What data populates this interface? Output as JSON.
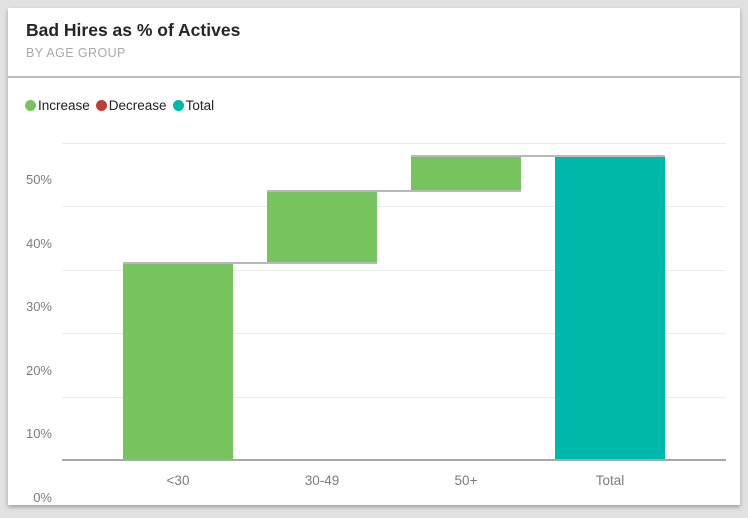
{
  "header": {
    "title": "Bad Hires as % of Actives",
    "subtitle": "BY AGE GROUP"
  },
  "legend": {
    "items": [
      {
        "label": "Increase",
        "color": "#77C35D"
      },
      {
        "label": "Decrease",
        "color": "#BE3C38"
      },
      {
        "label": "Total",
        "color": "#00B8AA"
      }
    ]
  },
  "chart_data": {
    "type": "waterfall",
    "title": "Bad Hires as % of Actives",
    "subtitle": "BY AGE GROUP",
    "categories": [
      "<30",
      "30-49",
      "50+",
      "Total"
    ],
    "series": [
      {
        "category": "<30",
        "kind": "increase",
        "delta": 30.9,
        "start": 0,
        "end": 30.9
      },
      {
        "category": "30-49",
        "kind": "increase",
        "delta": 11.4,
        "start": 30.9,
        "end": 42.3
      },
      {
        "category": "50+",
        "kind": "increase",
        "delta": 5.5,
        "start": 42.3,
        "end": 47.8
      },
      {
        "category": "Total",
        "kind": "total",
        "delta": 47.8,
        "start": 0,
        "end": 47.8
      }
    ],
    "ylim": [
      0,
      50
    ],
    "yticks": [
      0,
      10,
      20,
      30,
      40,
      50
    ],
    "ytick_labels": [
      "0%",
      "10%",
      "20%",
      "30%",
      "40%",
      "50%"
    ],
    "xlabel": "",
    "ylabel": "",
    "grid": true,
    "legend_position": "top-left",
    "colors": {
      "increase": "#77C35D",
      "decrease": "#BE3C38",
      "total": "#00B8AA",
      "connector": "#b9b9b9",
      "gridline": "#ebebeb",
      "axis_line": "#a8a8a8",
      "tick_text": "#7b7b7b"
    }
  }
}
